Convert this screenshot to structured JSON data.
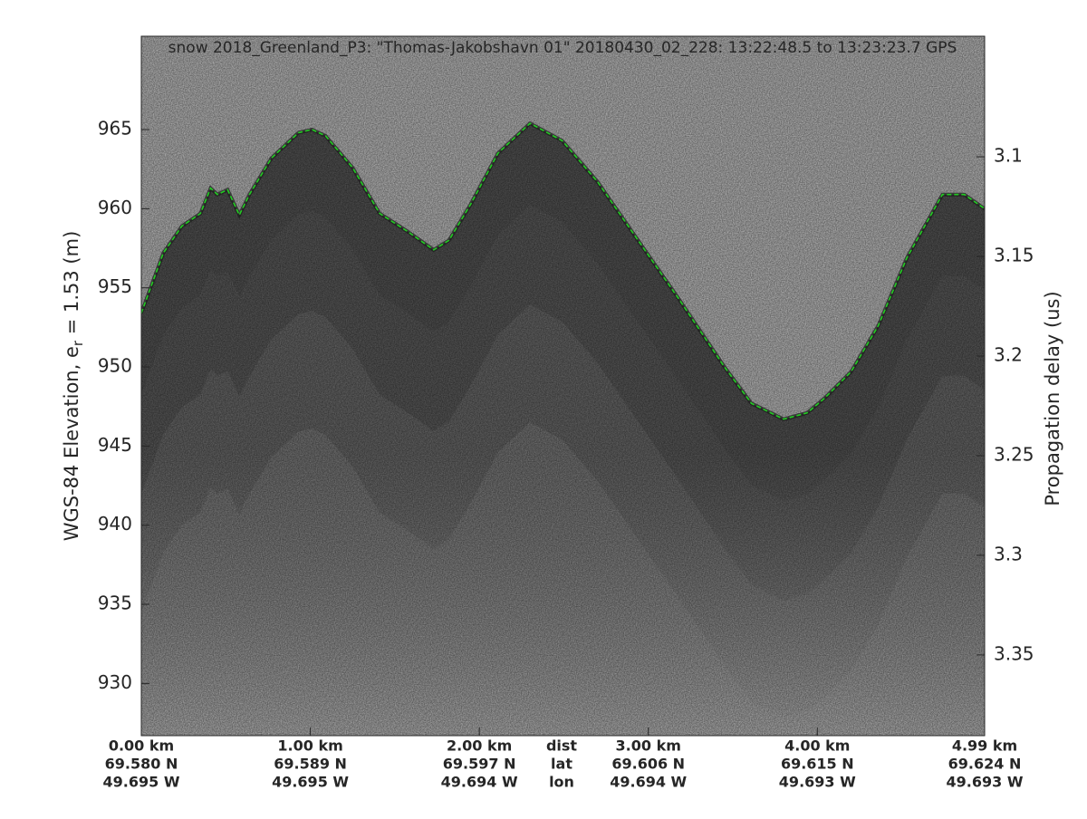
{
  "chart_data": {
    "type": "echogram",
    "title": "snow 2018_Greenland_P3: \"Thomas-Jakobshavn 01\"  20180430_02_228: 13:22:48.5 to 13:23:23.7 GPS",
    "ylabel_parts": [
      "WGS-84 Elevation, e",
      "r",
      " = 1.53 (m)"
    ],
    "y2label": "Propagation delay (us)",
    "xlim": [
      0,
      4.99
    ],
    "xticks": [
      {
        "value": 0,
        "label": "0.00 km"
      },
      {
        "value": 1,
        "label": "1.00 km"
      },
      {
        "value": 2,
        "label": "2.00 km"
      },
      {
        "value": 3,
        "label": "3.00 km"
      },
      {
        "value": 4,
        "label": "4.00 km"
      },
      {
        "value": 4.99,
        "label": "4.99 km"
      }
    ],
    "lat_labels": [
      "69.580 N",
      "69.589 N",
      "69.597 N",
      "69.606 N",
      "69.615 N",
      "69.624 N"
    ],
    "lon_labels": [
      "49.695 W",
      "49.695 W",
      "49.694 W",
      "49.694 W",
      "49.693 W",
      "49.693 W"
    ],
    "row_labels": [
      "dist",
      "lat",
      "lon"
    ],
    "ylim": [
      926.7,
      970.9
    ],
    "yticks": [
      930,
      935,
      940,
      945,
      950,
      955,
      960,
      965
    ],
    "y2lim": [
      3.0395,
      3.3905
    ],
    "y2ticks": [
      3.1,
      3.15,
      3.2,
      3.25,
      3.3,
      3.35
    ],
    "surface": {
      "color": "#22cc22",
      "x": [
        0,
        0.13,
        0.24,
        0.35,
        0.41,
        0.45,
        0.51,
        0.58,
        0.64,
        0.77,
        0.93,
        1.01,
        1.09,
        1.25,
        1.41,
        1.57,
        1.73,
        1.82,
        1.95,
        2.11,
        2.3,
        2.49,
        2.7,
        2.92,
        3.18,
        3.45,
        3.61,
        3.8,
        3.94,
        4.04,
        4.2,
        4.36,
        4.53,
        4.74,
        4.87,
        4.99
      ],
      "values": [
        953.4,
        957.2,
        958.9,
        959.7,
        961.3,
        960.9,
        961.2,
        959.6,
        960.9,
        963.2,
        964.8,
        965.0,
        964.6,
        962.6,
        959.7,
        958.6,
        957.4,
        958.0,
        960.3,
        963.5,
        965.4,
        964.3,
        961.7,
        958.3,
        954.3,
        950.0,
        947.7,
        946.7,
        947.1,
        948.0,
        949.7,
        952.6,
        956.9,
        960.9,
        960.9,
        960.0
      ]
    }
  }
}
